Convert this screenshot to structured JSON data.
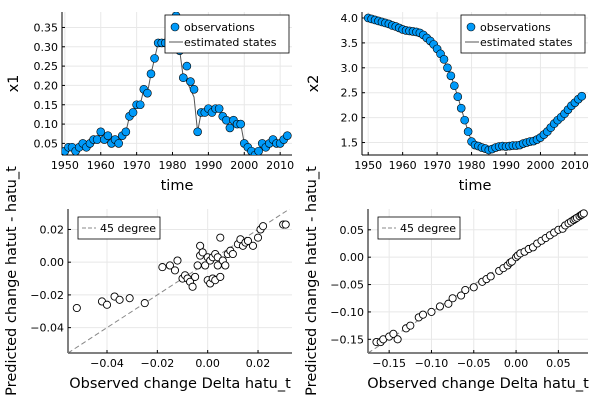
{
  "chart_data": [
    {
      "type": "scatter",
      "xlabel": "time",
      "ylabel": "x1",
      "xlim": [
        1949.2,
        2013.3
      ],
      "ylim": [
        0.02,
        0.39
      ],
      "xticks": [
        1950,
        1960,
        1970,
        1980,
        1990,
        2000,
        2010
      ],
      "yticks": [
        0.05,
        0.1,
        0.15,
        0.2,
        0.25,
        0.3,
        0.35
      ],
      "grid": true,
      "legend_position": "top-right",
      "legend": [
        "observations",
        "estimated states"
      ],
      "x": [
        1950,
        1951,
        1952,
        1953,
        1954,
        1955,
        1956,
        1957,
        1958,
        1959,
        1960,
        1961,
        1962,
        1963,
        1964,
        1965,
        1966,
        1967,
        1968,
        1969,
        1970,
        1971,
        1972,
        1973,
        1974,
        1975,
        1976,
        1977,
        1978,
        1979,
        1980,
        1981,
        1982,
        1983,
        1984,
        1985,
        1986,
        1987,
        1988,
        1989,
        1990,
        1991,
        1992,
        1993,
        1994,
        1995,
        1996,
        1997,
        1998,
        1999,
        2000,
        2001,
        2002,
        2003,
        2004,
        2005,
        2006,
        2007,
        2008,
        2009,
        2010,
        2011,
        2012
      ],
      "series": [
        {
          "name": "observations",
          "values": [
            0.03,
            0.04,
            0.04,
            0.03,
            0.04,
            0.05,
            0.04,
            0.05,
            0.06,
            0.06,
            0.08,
            0.06,
            0.07,
            0.05,
            0.06,
            0.05,
            0.07,
            0.08,
            0.12,
            0.13,
            0.15,
            0.15,
            0.19,
            0.18,
            0.23,
            0.27,
            0.31,
            0.31,
            0.31,
            0.32,
            0.32,
            0.38,
            0.29,
            0.22,
            0.25,
            0.21,
            0.19,
            0.08,
            0.13,
            0.13,
            0.14,
            0.13,
            0.14,
            0.14,
            0.12,
            0.11,
            0.09,
            0.11,
            0.1,
            0.1,
            0.05,
            0.04,
            0.03,
            0.02,
            0.03,
            0.05,
            0.04,
            0.05,
            0.06,
            0.05,
            0.05,
            0.06,
            0.07
          ]
        },
        {
          "name": "estimated states",
          "values": [
            0.03,
            0.04,
            0.04,
            0.03,
            0.04,
            0.05,
            0.04,
            0.05,
            0.06,
            0.06,
            0.08,
            0.06,
            0.07,
            0.05,
            0.06,
            0.05,
            0.07,
            0.08,
            0.12,
            0.13,
            0.15,
            0.15,
            0.19,
            0.18,
            0.23,
            0.27,
            0.31,
            0.31,
            0.31,
            0.32,
            0.32,
            0.38,
            0.29,
            0.22,
            0.21,
            0.19,
            0.17,
            0.08,
            0.13,
            0.13,
            0.14,
            0.13,
            0.14,
            0.14,
            0.12,
            0.11,
            0.09,
            0.11,
            0.1,
            0.1,
            0.05,
            0.04,
            0.03,
            0.02,
            0.03,
            0.05,
            0.04,
            0.05,
            0.06,
            0.05,
            0.05,
            0.06,
            0.07
          ]
        }
      ]
    },
    {
      "type": "scatter",
      "xlabel": "time",
      "ylabel": "x2",
      "xlim": [
        1948.2,
        2013.8
      ],
      "ylim": [
        1.25,
        4.12
      ],
      "xticks": [
        1950,
        1960,
        1970,
        1980,
        1990,
        2000,
        2010
      ],
      "yticks": [
        1.5,
        2.0,
        2.5,
        3.0,
        3.5,
        4.0
      ],
      "grid": true,
      "legend_position": "top-right",
      "legend": [
        "observations",
        "estimated states"
      ],
      "x": [
        1950,
        1951,
        1952,
        1953,
        1954,
        1955,
        1956,
        1957,
        1958,
        1959,
        1960,
        1961,
        1962,
        1963,
        1964,
        1965,
        1966,
        1967,
        1968,
        1969,
        1970,
        1971,
        1972,
        1973,
        1974,
        1975,
        1976,
        1977,
        1978,
        1979,
        1980,
        1981,
        1982,
        1983,
        1984,
        1985,
        1986,
        1987,
        1988,
        1989,
        1990,
        1991,
        1992,
        1993,
        1994,
        1995,
        1996,
        1997,
        1998,
        1999,
        2000,
        2001,
        2002,
        2003,
        2004,
        2005,
        2006,
        2007,
        2008,
        2009,
        2010,
        2011,
        2012
      ],
      "series": [
        {
          "name": "observations",
          "values": [
            4.0,
            3.98,
            3.96,
            3.94,
            3.92,
            3.9,
            3.88,
            3.85,
            3.83,
            3.8,
            3.77,
            3.75,
            3.74,
            3.73,
            3.72,
            3.7,
            3.66,
            3.6,
            3.54,
            3.47,
            3.38,
            3.28,
            3.17,
            3.0,
            2.84,
            2.64,
            2.42,
            2.19,
            1.95,
            1.72,
            1.52,
            1.45,
            1.43,
            1.4,
            1.38,
            1.35,
            1.37,
            1.4,
            1.42,
            1.43,
            1.42,
            1.43,
            1.44,
            1.44,
            1.45,
            1.48,
            1.5,
            1.52,
            1.53,
            1.56,
            1.6,
            1.66,
            1.72,
            1.8,
            1.88,
            1.95,
            2.01,
            2.08,
            2.16,
            2.24,
            2.3,
            2.37,
            2.43
          ]
        },
        {
          "name": "estimated states",
          "values": [
            4.0,
            3.98,
            3.96,
            3.94,
            3.92,
            3.9,
            3.88,
            3.85,
            3.83,
            3.8,
            3.77,
            3.75,
            3.74,
            3.73,
            3.72,
            3.7,
            3.66,
            3.6,
            3.54,
            3.47,
            3.38,
            3.28,
            3.17,
            3.0,
            2.84,
            2.64,
            2.42,
            2.19,
            1.95,
            1.72,
            1.52,
            1.45,
            1.43,
            1.4,
            1.38,
            1.35,
            1.37,
            1.4,
            1.42,
            1.43,
            1.42,
            1.43,
            1.44,
            1.44,
            1.45,
            1.48,
            1.5,
            1.52,
            1.53,
            1.56,
            1.6,
            1.66,
            1.72,
            1.8,
            1.88,
            1.95,
            2.01,
            2.08,
            2.16,
            2.24,
            2.3,
            2.37,
            2.43
          ]
        }
      ]
    },
    {
      "type": "scatter",
      "xlabel": "Observed change Delta hatu_t",
      "ylabel": "Predicted change hatut - hatu_t",
      "xlim": [
        -0.0555,
        0.0335
      ],
      "ylim": [
        -0.0555,
        0.0325
      ],
      "xticks": [
        -0.04,
        -0.02,
        0.0,
        0.02
      ],
      "yticks": [
        -0.04,
        -0.02,
        0.0,
        0.02
      ],
      "grid": true,
      "legend_position": "top-left",
      "legend": [
        "45 degree"
      ],
      "reference_line": {
        "name": "45 degree",
        "slope": 1,
        "intercept": 0
      },
      "points": [
        [
          -0.052,
          -0.028
        ],
        [
          -0.042,
          -0.024
        ],
        [
          -0.04,
          -0.026
        ],
        [
          -0.037,
          -0.021
        ],
        [
          -0.035,
          -0.023
        ],
        [
          -0.031,
          -0.022
        ],
        [
          -0.025,
          -0.025
        ],
        [
          -0.018,
          -0.003
        ],
        [
          -0.015,
          -0.002
        ],
        [
          -0.013,
          -0.005
        ],
        [
          -0.012,
          0.001
        ],
        [
          -0.01,
          -0.01
        ],
        [
          -0.009,
          -0.008
        ],
        [
          -0.008,
          -0.01
        ],
        [
          -0.007,
          -0.012
        ],
        [
          -0.006,
          -0.015
        ],
        [
          -0.005,
          -0.009
        ],
        [
          -0.004,
          -0.002
        ],
        [
          -0.003,
          0.004
        ],
        [
          -0.003,
          0.01
        ],
        [
          -0.002,
          0.006
        ],
        [
          -0.001,
          -0.002
        ],
        [
          0.0,
          0.003
        ],
        [
          0.0,
          -0.011
        ],
        [
          0.001,
          -0.013
        ],
        [
          0.001,
          0.001
        ],
        [
          0.002,
          -0.01
        ],
        [
          0.002,
          0.003
        ],
        [
          0.003,
          -0.011
        ],
        [
          0.003,
          0.005
        ],
        [
          0.004,
          0.003
        ],
        [
          0.004,
          -0.002
        ],
        [
          0.005,
          0.015
        ],
        [
          0.005,
          -0.009
        ],
        [
          0.006,
          0.001
        ],
        [
          0.007,
          -0.002
        ],
        [
          0.008,
          0.005
        ],
        [
          0.009,
          0.007
        ],
        [
          0.01,
          0.005
        ],
        [
          0.012,
          0.011
        ],
        [
          0.013,
          0.014
        ],
        [
          0.014,
          0.01
        ],
        [
          0.015,
          0.012
        ],
        [
          0.016,
          0.013
        ],
        [
          0.018,
          0.01
        ],
        [
          0.02,
          0.015
        ],
        [
          0.021,
          0.02
        ],
        [
          0.022,
          0.022
        ],
        [
          0.03,
          0.023
        ],
        [
          0.031,
          0.023
        ]
      ]
    },
    {
      "type": "scatter",
      "xlabel": "Observed change Delta hatu_t",
      "ylabel": "Predicted change hatut - hatu_t",
      "xlim": [
        -0.175,
        0.085
      ],
      "ylim": [
        -0.175,
        0.088
      ],
      "xticks": [
        -0.15,
        -0.1,
        -0.05,
        0.0,
        0.05
      ],
      "yticks": [
        -0.15,
        -0.1,
        -0.05,
        0.0,
        0.05
      ],
      "grid": true,
      "legend_position": "top-left",
      "legend": [
        "45 degree"
      ],
      "reference_line": {
        "name": "45 degree",
        "slope": 1,
        "intercept": 0
      },
      "points": [
        [
          -0.165,
          -0.155
        ],
        [
          -0.16,
          -0.155
        ],
        [
          -0.157,
          -0.15
        ],
        [
          -0.15,
          -0.145
        ],
        [
          -0.145,
          -0.14
        ],
        [
          -0.14,
          -0.15
        ],
        [
          -0.13,
          -0.13
        ],
        [
          -0.125,
          -0.125
        ],
        [
          -0.115,
          -0.11
        ],
        [
          -0.11,
          -0.105
        ],
        [
          -0.1,
          -0.1
        ],
        [
          -0.09,
          -0.09
        ],
        [
          -0.08,
          -0.085
        ],
        [
          -0.075,
          -0.075
        ],
        [
          -0.065,
          -0.07
        ],
        [
          -0.06,
          -0.06
        ],
        [
          -0.05,
          -0.055
        ],
        [
          -0.04,
          -0.045
        ],
        [
          -0.035,
          -0.04
        ],
        [
          -0.03,
          -0.035
        ],
        [
          -0.02,
          -0.025
        ],
        [
          -0.015,
          -0.02
        ],
        [
          -0.01,
          -0.015
        ],
        [
          -0.007,
          -0.01
        ],
        [
          -0.005,
          -0.008
        ],
        [
          0.0,
          0.0
        ],
        [
          0.002,
          0.003
        ],
        [
          0.005,
          0.007
        ],
        [
          0.01,
          0.01
        ],
        [
          0.015,
          0.015
        ],
        [
          0.02,
          0.018
        ],
        [
          0.025,
          0.025
        ],
        [
          0.03,
          0.03
        ],
        [
          0.035,
          0.035
        ],
        [
          0.04,
          0.04
        ],
        [
          0.045,
          0.045
        ],
        [
          0.05,
          0.05
        ],
        [
          0.055,
          0.052
        ],
        [
          0.058,
          0.058
        ],
        [
          0.062,
          0.062
        ],
        [
          0.065,
          0.065
        ],
        [
          0.068,
          0.068
        ],
        [
          0.07,
          0.07
        ],
        [
          0.072,
          0.072
        ],
        [
          0.075,
          0.075
        ],
        [
          0.077,
          0.077
        ],
        [
          0.078,
          0.078
        ],
        [
          0.08,
          0.08
        ]
      ]
    }
  ],
  "colors": {
    "marker": "#009af9",
    "line": "#555555",
    "reference": "#888888",
    "grid": "#e8e8e8"
  }
}
